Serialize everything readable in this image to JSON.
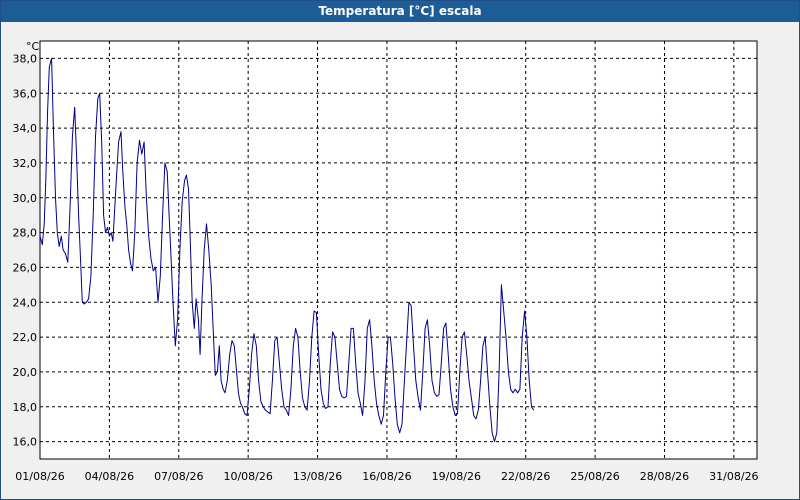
{
  "window": {
    "title": "Temperatura [°C] escala"
  },
  "chart_data": {
    "type": "line",
    "title": "Temperatura [°C] escala",
    "ylabel": "°C",
    "xlabel": "",
    "xlim": [
      "01/08/26",
      "01/09/26"
    ],
    "ylim": [
      15,
      39
    ],
    "grid": true,
    "y_ticks": [
      "16,0",
      "18,0",
      "20,0",
      "22,0",
      "24,0",
      "26,0",
      "28,0",
      "30,0",
      "32,0",
      "34,0",
      "36,0",
      "38,0"
    ],
    "x_ticks": [
      "01/08/26",
      "04/08/26",
      "07/08/26",
      "10/08/26",
      "13/08/26",
      "16/08/26",
      "19/08/26",
      "22/08/26",
      "25/08/26",
      "28/08/26",
      "31/08/26"
    ],
    "series": [
      {
        "color": "#00008b",
        "points": [
          [
            0.0,
            27.8
          ],
          [
            0.1,
            27.3
          ],
          [
            0.18,
            28.5
          ],
          [
            0.25,
            31.0
          ],
          [
            0.33,
            35.0
          ],
          [
            0.4,
            37.5
          ],
          [
            0.5,
            38.0
          ],
          [
            0.58,
            34.0
          ],
          [
            0.67,
            30.0
          ],
          [
            0.75,
            28.0
          ],
          [
            0.83,
            27.2
          ],
          [
            0.92,
            27.8
          ],
          [
            1.0,
            27.0
          ],
          [
            1.1,
            26.8
          ],
          [
            1.2,
            26.3
          ],
          [
            1.3,
            29.5
          ],
          [
            1.4,
            33.5
          ],
          [
            1.5,
            35.2
          ],
          [
            1.58,
            32.5
          ],
          [
            1.67,
            29.0
          ],
          [
            1.75,
            26.5
          ],
          [
            1.83,
            24.0
          ],
          [
            1.92,
            23.9
          ],
          [
            2.0,
            24.0
          ],
          [
            2.1,
            24.2
          ],
          [
            2.2,
            25.5
          ],
          [
            2.3,
            29.0
          ],
          [
            2.4,
            33.5
          ],
          [
            2.5,
            35.7
          ],
          [
            2.58,
            36.0
          ],
          [
            2.67,
            33.0
          ],
          [
            2.75,
            29.0
          ],
          [
            2.83,
            28.0
          ],
          [
            2.92,
            28.3
          ],
          [
            3.0,
            27.8
          ],
          [
            3.08,
            28.0
          ],
          [
            3.15,
            27.5
          ],
          [
            3.3,
            31.0
          ],
          [
            3.4,
            33.2
          ],
          [
            3.5,
            33.8
          ],
          [
            3.58,
            31.5
          ],
          [
            3.67,
            29.5
          ],
          [
            3.75,
            28.5
          ],
          [
            3.83,
            27.0
          ],
          [
            3.92,
            26.2
          ],
          [
            4.0,
            25.8
          ],
          [
            4.1,
            28.0
          ],
          [
            4.2,
            32.0
          ],
          [
            4.3,
            33.3
          ],
          [
            4.4,
            32.5
          ],
          [
            4.5,
            33.2
          ],
          [
            4.6,
            30.0
          ],
          [
            4.7,
            27.8
          ],
          [
            4.8,
            26.5
          ],
          [
            4.9,
            25.8
          ],
          [
            5.0,
            26.0
          ],
          [
            5.1,
            24.0
          ],
          [
            5.2,
            25.5
          ],
          [
            5.3,
            29.0
          ],
          [
            5.4,
            32.0
          ],
          [
            5.5,
            31.5
          ],
          [
            5.58,
            29.0
          ],
          [
            5.67,
            26.5
          ],
          [
            5.75,
            24.0
          ],
          [
            5.85,
            21.5
          ],
          [
            5.95,
            23.0
          ],
          [
            6.05,
            27.0
          ],
          [
            6.15,
            29.8
          ],
          [
            6.25,
            31.0
          ],
          [
            6.33,
            31.3
          ],
          [
            6.42,
            30.5
          ],
          [
            6.5,
            27.5
          ],
          [
            6.58,
            24.0
          ],
          [
            6.67,
            22.5
          ],
          [
            6.75,
            24.2
          ],
          [
            6.85,
            23.0
          ],
          [
            6.92,
            21.0
          ],
          [
            7.0,
            24.0
          ],
          [
            7.1,
            27.0
          ],
          [
            7.2,
            28.5
          ],
          [
            7.3,
            27.0
          ],
          [
            7.4,
            25.0
          ],
          [
            7.5,
            22.0
          ],
          [
            7.58,
            19.8
          ],
          [
            7.67,
            20.0
          ],
          [
            7.75,
            21.5
          ],
          [
            7.83,
            19.5
          ],
          [
            7.92,
            19.0
          ],
          [
            8.0,
            18.8
          ],
          [
            8.1,
            19.5
          ],
          [
            8.2,
            21.0
          ],
          [
            8.3,
            21.8
          ],
          [
            8.4,
            21.5
          ],
          [
            8.5,
            20.0
          ],
          [
            8.58,
            18.8
          ],
          [
            8.67,
            18.2
          ],
          [
            8.75,
            18.0
          ],
          [
            8.85,
            17.6
          ],
          [
            8.95,
            17.5
          ],
          [
            9.05,
            19.0
          ],
          [
            9.15,
            21.0
          ],
          [
            9.25,
            22.2
          ],
          [
            9.35,
            21.5
          ],
          [
            9.45,
            19.5
          ],
          [
            9.55,
            18.3
          ],
          [
            9.65,
            18.0
          ],
          [
            9.75,
            17.8
          ],
          [
            9.85,
            17.7
          ],
          [
            9.95,
            17.6
          ],
          [
            10.05,
            19.5
          ],
          [
            10.15,
            21.8
          ],
          [
            10.25,
            22.0
          ],
          [
            10.35,
            20.5
          ],
          [
            10.45,
            19.0
          ],
          [
            10.55,
            18.0
          ],
          [
            10.65,
            17.8
          ],
          [
            10.75,
            17.5
          ],
          [
            10.85,
            19.0
          ],
          [
            10.95,
            21.5
          ],
          [
            11.05,
            22.5
          ],
          [
            11.15,
            22.0
          ],
          [
            11.25,
            20.0
          ],
          [
            11.35,
            18.5
          ],
          [
            11.45,
            18.0
          ],
          [
            11.55,
            17.8
          ],
          [
            11.65,
            19.5
          ],
          [
            11.75,
            22.0
          ],
          [
            11.85,
            23.5
          ],
          [
            11.95,
            23.4
          ],
          [
            12.05,
            21.0
          ],
          [
            12.15,
            19.0
          ],
          [
            12.25,
            18.2
          ],
          [
            12.35,
            17.9
          ],
          [
            12.45,
            18.0
          ],
          [
            12.55,
            20.5
          ],
          [
            12.65,
            22.3
          ],
          [
            12.75,
            22.0
          ],
          [
            12.85,
            20.5
          ],
          [
            12.95,
            19.0
          ],
          [
            13.05,
            18.6
          ],
          [
            13.15,
            18.5
          ],
          [
            13.25,
            18.6
          ],
          [
            13.35,
            20.5
          ],
          [
            13.45,
            22.5
          ],
          [
            13.55,
            22.5
          ],
          [
            13.65,
            20.5
          ],
          [
            13.75,
            18.8
          ],
          [
            13.85,
            18.2
          ],
          [
            13.95,
            17.5
          ],
          [
            14.05,
            19.5
          ],
          [
            14.15,
            22.5
          ],
          [
            14.25,
            23.0
          ],
          [
            14.35,
            21.5
          ],
          [
            14.45,
            19.5
          ],
          [
            14.55,
            18.2
          ],
          [
            14.65,
            17.5
          ],
          [
            14.75,
            17.0
          ],
          [
            14.85,
            17.5
          ],
          [
            14.95,
            20.0
          ],
          [
            15.05,
            22.0
          ],
          [
            15.15,
            22.0
          ],
          [
            15.25,
            20.5
          ],
          [
            15.35,
            18.5
          ],
          [
            15.45,
            17.0
          ],
          [
            15.55,
            16.5
          ],
          [
            15.65,
            17.0
          ],
          [
            15.8,
            20.5
          ],
          [
            15.95,
            24.0
          ],
          [
            16.05,
            23.8
          ],
          [
            16.15,
            21.5
          ],
          [
            16.25,
            19.5
          ],
          [
            16.35,
            18.5
          ],
          [
            16.45,
            17.8
          ],
          [
            16.55,
            20.0
          ],
          [
            16.65,
            22.5
          ],
          [
            16.75,
            23.0
          ],
          [
            16.85,
            21.5
          ],
          [
            16.95,
            19.5
          ],
          [
            17.05,
            18.8
          ],
          [
            17.15,
            18.6
          ],
          [
            17.25,
            18.7
          ],
          [
            17.35,
            20.5
          ],
          [
            17.45,
            22.5
          ],
          [
            17.55,
            22.8
          ],
          [
            17.65,
            21.0
          ],
          [
            17.75,
            19.0
          ],
          [
            17.85,
            18.0
          ],
          [
            17.95,
            17.5
          ],
          [
            18.05,
            17.6
          ],
          [
            18.15,
            20.0
          ],
          [
            18.25,
            22.0
          ],
          [
            18.35,
            22.3
          ],
          [
            18.45,
            21.0
          ],
          [
            18.55,
            19.5
          ],
          [
            18.65,
            18.5
          ],
          [
            18.75,
            17.5
          ],
          [
            18.85,
            17.3
          ],
          [
            18.95,
            17.8
          ],
          [
            19.05,
            19.5
          ],
          [
            19.15,
            21.5
          ],
          [
            19.25,
            22.0
          ],
          [
            19.35,
            20.0
          ],
          [
            19.45,
            18.0
          ],
          [
            19.55,
            16.5
          ],
          [
            19.65,
            16.0
          ],
          [
            19.75,
            16.5
          ],
          [
            19.85,
            20.0
          ],
          [
            19.95,
            25.0
          ],
          [
            20.05,
            23.5
          ],
          [
            20.15,
            22.0
          ],
          [
            20.25,
            20.0
          ],
          [
            20.35,
            19.0
          ],
          [
            20.45,
            18.8
          ],
          [
            20.55,
            19.0
          ],
          [
            20.65,
            18.8
          ],
          [
            20.75,
            19.0
          ],
          [
            20.85,
            22.0
          ],
          [
            20.95,
            23.5
          ],
          [
            21.05,
            22.0
          ],
          [
            21.15,
            19.5
          ],
          [
            21.25,
            18.0
          ],
          [
            21.35,
            17.8
          ]
        ]
      }
    ]
  }
}
